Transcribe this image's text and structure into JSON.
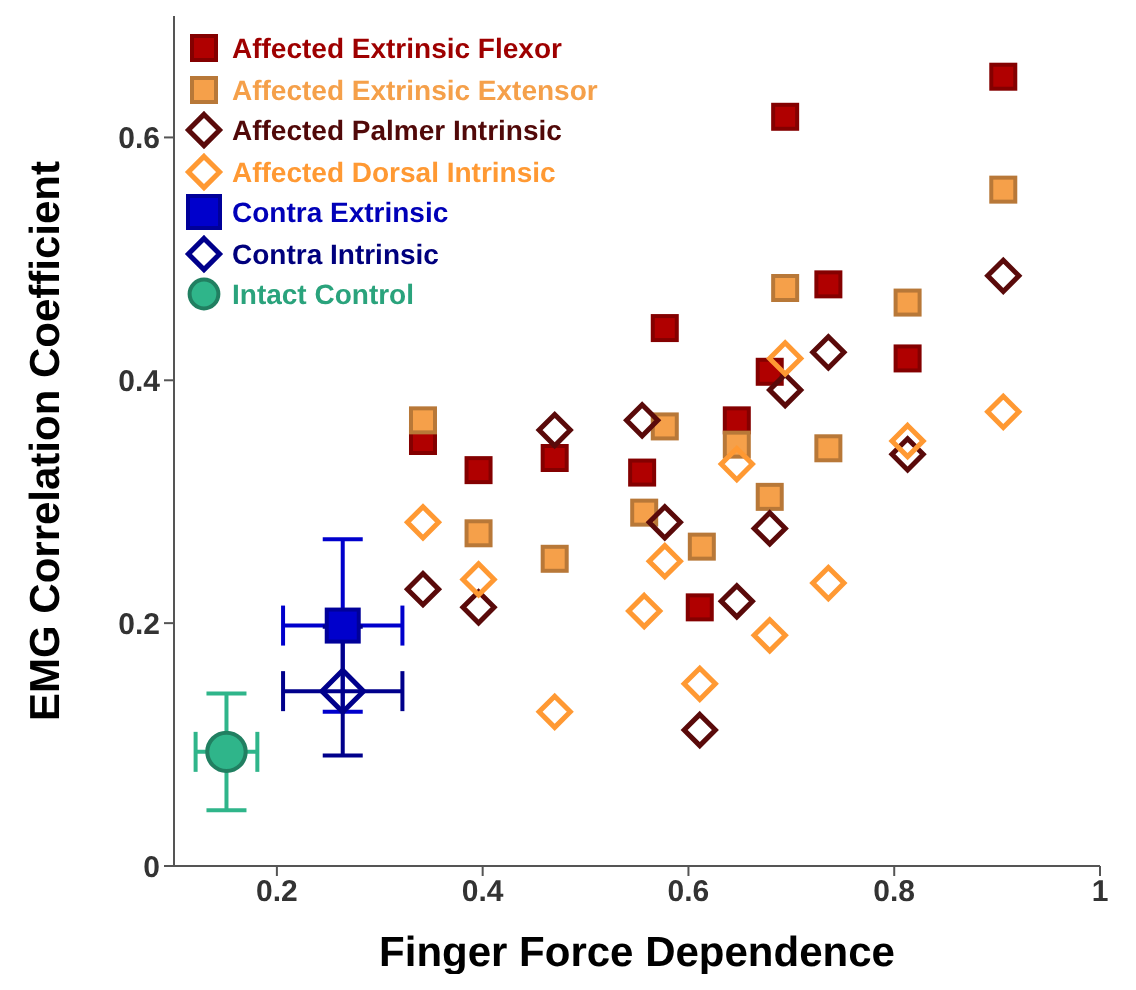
{
  "chart_data": {
    "type": "scatter",
    "xlabel": "Finger Force Dependence",
    "ylabel": "EMG Correlation Coefficient",
    "xlim": [
      0.1,
      1
    ],
    "ylim": [
      0,
      0.7
    ],
    "xticks": [
      0.2,
      0.4,
      0.6,
      0.8,
      1
    ],
    "yticks": [
      0,
      0.2,
      0.4,
      0.6
    ],
    "grid": false,
    "legend": "top left",
    "series": [
      {
        "name": "Affected Extrinsic Flexor",
        "color": "#b00000",
        "marker": "square",
        "x": [
          0.906,
          0.694,
          0.736,
          0.577,
          0.813,
          0.679,
          0.342,
          0.396,
          0.47,
          0.555,
          0.647,
          0.611
        ],
        "values": [
          0.65,
          0.617,
          0.479,
          0.443,
          0.418,
          0.407,
          0.35,
          0.326,
          0.336,
          0.324,
          0.367,
          0.213
        ]
      },
      {
        "name": "Affected Extrinsic Extensor",
        "color": "#f5a04a",
        "marker": "square",
        "x": [
          0.906,
          0.694,
          0.813,
          0.342,
          0.577,
          0.647,
          0.736,
          0.679,
          0.557,
          0.396,
          0.47,
          0.613
        ],
        "values": [
          0.557,
          0.476,
          0.464,
          0.367,
          0.362,
          0.347,
          0.344,
          0.304,
          0.291,
          0.274,
          0.253,
          0.263
        ]
      },
      {
        "name": "Affected Palmer Intrinsic",
        "color": "#5a0a0a",
        "marker": "diamond",
        "x": [
          0.906,
          0.736,
          0.694,
          0.47,
          0.555,
          0.813,
          0.577,
          0.679,
          0.342,
          0.396,
          0.647,
          0.611
        ],
        "values": [
          0.486,
          0.423,
          0.392,
          0.359,
          0.367,
          0.339,
          0.283,
          0.278,
          0.228,
          0.213,
          0.218,
          0.112
        ]
      },
      {
        "name": "Affected Dorsal Intrinsic",
        "color": "#ff9933",
        "marker": "diamond",
        "x": [
          0.694,
          0.813,
          0.906,
          0.647,
          0.342,
          0.396,
          0.577,
          0.736,
          0.557,
          0.679,
          0.611,
          0.47
        ],
        "values": [
          0.418,
          0.35,
          0.374,
          0.331,
          0.283,
          0.236,
          0.251,
          0.233,
          0.21,
          0.19,
          0.15,
          0.127
        ]
      },
      {
        "name": "Contra Extrinsic",
        "color": "#0000cc",
        "marker": "square",
        "x": [
          0.264
        ],
        "values": [
          0.198
        ],
        "errors": [
          0.071
        ],
        "xerrors": [
          0.058
        ]
      },
      {
        "name": "Contra Intrinsic",
        "color": "#00008b",
        "marker": "diamond",
        "x": [
          0.264
        ],
        "values": [
          0.144
        ],
        "errors": [
          0.053
        ],
        "xerrors": [
          0.058
        ]
      },
      {
        "name": "Intact Control",
        "color": "#2fb58a",
        "marker": "circle",
        "x": [
          0.151
        ],
        "values": [
          0.094
        ],
        "errors": [
          0.048
        ],
        "xerrors": [
          0.03
        ]
      }
    ]
  }
}
